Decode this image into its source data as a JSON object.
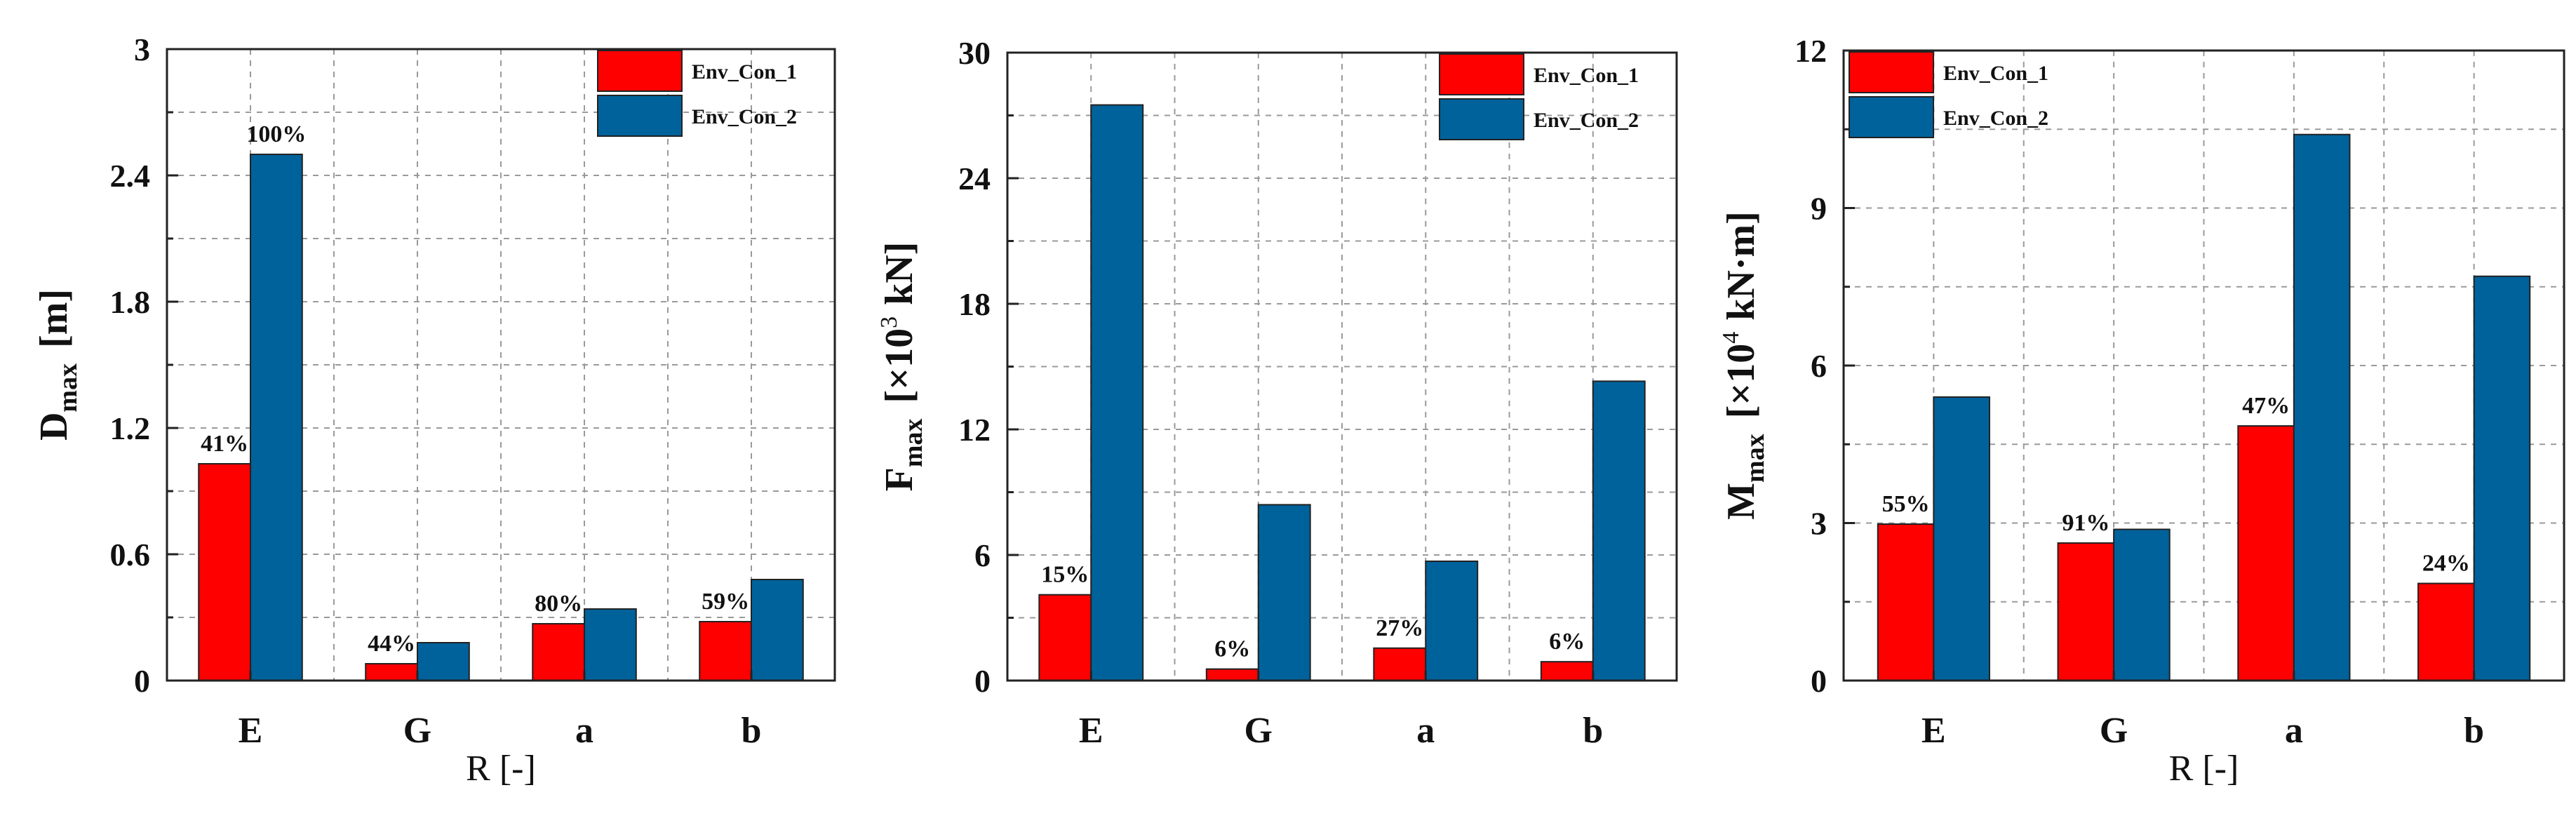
{
  "colors": {
    "env_con_1": "#ff0000",
    "env_con_2": "#00629b"
  },
  "chart_data": [
    {
      "type": "bar",
      "categories": [
        "E",
        "G",
        "a",
        "b"
      ],
      "xlabel": "R [-]",
      "ylabel": "D",
      "ylabel_sub": "max",
      "ylabel_unit": "[m]",
      "ylim": [
        0,
        3
      ],
      "yticks": [
        "0",
        "0.6",
        "1.2",
        "1.8",
        "2.4",
        "3"
      ],
      "ytick_values": [
        0,
        0.6,
        1.2,
        1.8,
        2.4,
        3
      ],
      "grid": true,
      "legend_position": "top-right",
      "series": [
        {
          "name": "Env_Con_1",
          "values": [
            1.03,
            0.08,
            0.27,
            0.28
          ]
        },
        {
          "name": "Env_Con_2",
          "values": [
            2.5,
            0.18,
            0.34,
            0.48
          ]
        }
      ],
      "annotations": [
        {
          "category": "E",
          "series": "Env_Con_1",
          "text": "41%"
        },
        {
          "category": "E",
          "series": "Env_Con_2",
          "text": "100%"
        },
        {
          "category": "G",
          "series": "Env_Con_1",
          "text": "44%"
        },
        {
          "category": "a",
          "series": "Env_Con_1",
          "text": "80%"
        },
        {
          "category": "b",
          "series": "Env_Con_1",
          "text": "59%"
        }
      ]
    },
    {
      "type": "bar",
      "categories": [
        "E",
        "G",
        "a",
        "b"
      ],
      "xlabel": "",
      "ylabel": "F",
      "ylabel_sub": "max",
      "ylabel_unit": "[×10",
      "ylabel_sup": "3",
      "ylabel_unit2": "kN]",
      "ylim": [
        0,
        30
      ],
      "yticks": [
        "0",
        "6",
        "12",
        "18",
        "24",
        "30"
      ],
      "ytick_values": [
        0,
        6,
        12,
        18,
        24,
        30
      ],
      "grid": true,
      "legend_position": "top-right",
      "series": [
        {
          "name": "Env_Con_1",
          "values": [
            4.1,
            0.55,
            1.55,
            0.9
          ]
        },
        {
          "name": "Env_Con_2",
          "values": [
            27.5,
            8.4,
            5.7,
            14.3
          ]
        }
      ],
      "annotations": [
        {
          "category": "E",
          "series": "Env_Con_1",
          "text": "15%"
        },
        {
          "category": "G",
          "series": "Env_Con_1",
          "text": "6%"
        },
        {
          "category": "a",
          "series": "Env_Con_1",
          "text": "27%"
        },
        {
          "category": "b",
          "series": "Env_Con_1",
          "text": "6%"
        }
      ]
    },
    {
      "type": "bar",
      "categories": [
        "E",
        "G",
        "a",
        "b"
      ],
      "xlabel": "R [-]",
      "ylabel": "M",
      "ylabel_sub": "max",
      "ylabel_unit": "[×10",
      "ylabel_sup": "4",
      "ylabel_unit2": "kN·m]",
      "ylim": [
        0,
        12
      ],
      "yticks": [
        "0",
        "3",
        "6",
        "9",
        "12"
      ],
      "ytick_values": [
        0,
        3,
        6,
        9,
        12
      ],
      "grid": true,
      "legend_position": "top-left",
      "series": [
        {
          "name": "Env_Con_1",
          "values": [
            2.98,
            2.62,
            4.85,
            1.85
          ]
        },
        {
          "name": "Env_Con_2",
          "values": [
            5.4,
            2.88,
            10.4,
            7.7
          ]
        }
      ],
      "annotations": [
        {
          "category": "E",
          "series": "Env_Con_1",
          "text": "55%"
        },
        {
          "category": "G",
          "series": "Env_Con_1",
          "text": "91%"
        },
        {
          "category": "a",
          "series": "Env_Con_1",
          "text": "47%"
        },
        {
          "category": "b",
          "series": "Env_Con_1",
          "text": "24%"
        }
      ]
    }
  ]
}
